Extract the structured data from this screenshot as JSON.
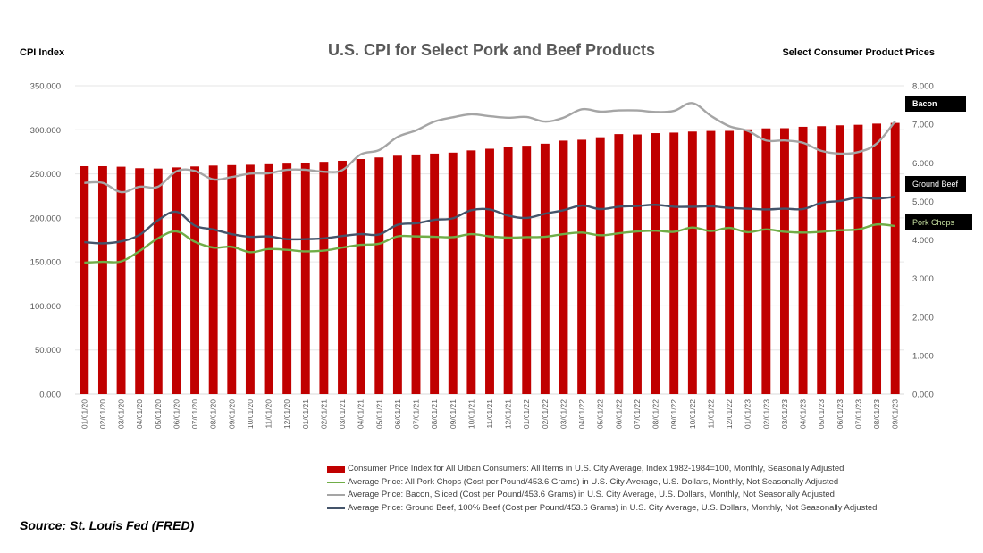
{
  "chart_data": {
    "type": "bar",
    "title": "U.S. CPI for Select Pork and Beef Products",
    "ylabel_left": "CPI Index",
    "ylabel_right": "Select Consumer Product Prices",
    "xlabel": "",
    "ylim_left": [
      0,
      350
    ],
    "ylim_right": [
      0,
      8
    ],
    "yticks_left": [
      "0.000",
      "50.000",
      "100.000",
      "150.000",
      "200.000",
      "250.000",
      "300.000",
      "350.000"
    ],
    "yticks_right": [
      "0.000",
      "1.000",
      "2.000",
      "3.000",
      "4.000",
      "5.000",
      "6.000",
      "7.000",
      "8.000"
    ],
    "grid": true,
    "legend_position": "bottom",
    "categories": [
      "01/01/20",
      "02/01/20",
      "03/01/20",
      "04/01/20",
      "05/01/20",
      "06/01/20",
      "07/01/20",
      "08/01/20",
      "09/01/20",
      "10/01/20",
      "11/01/20",
      "12/01/20",
      "01/01/21",
      "02/01/21",
      "03/01/21",
      "04/01/21",
      "05/01/21",
      "06/01/21",
      "07/01/21",
      "08/01/21",
      "09/01/21",
      "10/01/21",
      "11/01/21",
      "12/01/21",
      "01/01/22",
      "02/01/22",
      "03/01/22",
      "04/01/22",
      "05/01/22",
      "06/01/22",
      "07/01/22",
      "08/01/22",
      "09/01/22",
      "10/01/22",
      "11/01/22",
      "12/01/22",
      "01/01/23",
      "02/01/23",
      "03/01/23",
      "04/01/23",
      "05/01/23",
      "06/01/23",
      "07/01/23",
      "08/01/23",
      "09/01/23"
    ],
    "series": [
      {
        "name": "Consumer Price Index for All Urban Consumers: All Items in U.S. City Average, Index 1982-1984=100, Monthly, Seasonally Adjusted",
        "type": "bar",
        "axis": "left",
        "color": "#C00000",
        "values": [
          258.7,
          258.7,
          258.1,
          256.4,
          256.0,
          257.3,
          258.4,
          259.4,
          259.9,
          260.3,
          260.9,
          261.6,
          262.5,
          263.6,
          264.8,
          266.8,
          268.6,
          270.6,
          272.0,
          273.0,
          274.1,
          276.6,
          278.5,
          280.1,
          281.9,
          284.2,
          287.7,
          288.7,
          291.5,
          295.1,
          294.7,
          296.2,
          296.8,
          298.0,
          298.7,
          298.8,
          300.5,
          301.6,
          301.8,
          303.4,
          304.1,
          305.1,
          305.7,
          307.0,
          307.8
        ]
      },
      {
        "name": "Average Price: All Pork Chops (Cost per Pound/453.6 Grams) in U.S. City Average, U.S. Dollars, Monthly, Not Seasonally Adjusted",
        "type": "line",
        "axis": "right",
        "color": "#70AD47",
        "values": [
          3.41,
          3.43,
          3.44,
          3.71,
          4.04,
          4.22,
          3.95,
          3.8,
          3.82,
          3.68,
          3.76,
          3.74,
          3.7,
          3.72,
          3.8,
          3.87,
          3.9,
          4.09,
          4.09,
          4.08,
          4.07,
          4.15,
          4.09,
          4.06,
          4.07,
          4.08,
          4.15,
          4.19,
          4.12,
          4.17,
          4.22,
          4.24,
          4.21,
          4.32,
          4.23,
          4.31,
          4.2,
          4.27,
          4.21,
          4.19,
          4.21,
          4.25,
          4.27,
          4.4,
          4.36
        ]
      },
      {
        "name": "Average Price: Bacon, Sliced (Cost per Pound/453.6 Grams) in U.S. City Average, U.S. Dollars, Monthly, Not Seasonally Adjusted",
        "type": "line",
        "axis": "right",
        "color": "#A5A5A5",
        "values": [
          5.48,
          5.48,
          5.24,
          5.38,
          5.38,
          5.78,
          5.79,
          5.57,
          5.63,
          5.72,
          5.73,
          5.82,
          5.82,
          5.77,
          5.81,
          6.22,
          6.33,
          6.67,
          6.84,
          7.07,
          7.18,
          7.26,
          7.21,
          7.17,
          7.19,
          7.07,
          7.17,
          7.39,
          7.33,
          7.36,
          7.36,
          7.32,
          7.35,
          7.55,
          7.22,
          6.95,
          6.83,
          6.58,
          6.58,
          6.52,
          6.31,
          6.24,
          6.28,
          6.5,
          7.08
        ]
      },
      {
        "name": "Average Price: Ground Beef, 100% Beef (Cost per Pound/453.6 Grams) in U.S. City Average, U.S. Dollars, Monthly, Not Seasonally Adjusted",
        "type": "line",
        "axis": "right",
        "color": "#44546A",
        "values": [
          3.94,
          3.91,
          3.96,
          4.13,
          4.51,
          4.73,
          4.37,
          4.27,
          4.15,
          4.08,
          4.09,
          4.02,
          4.02,
          4.04,
          4.1,
          4.15,
          4.14,
          4.39,
          4.43,
          4.52,
          4.56,
          4.77,
          4.79,
          4.63,
          4.57,
          4.68,
          4.77,
          4.89,
          4.8,
          4.86,
          4.88,
          4.91,
          4.86,
          4.86,
          4.87,
          4.83,
          4.81,
          4.79,
          4.81,
          4.8,
          4.96,
          5.01,
          5.1,
          5.07,
          5.12
        ]
      }
    ],
    "annotations": [
      {
        "label": "Bacon",
        "series": "bacon"
      },
      {
        "label": "Ground Beef",
        "series": "ground_beef"
      },
      {
        "label": "Pork Chops",
        "series": "pork_chops"
      }
    ]
  },
  "labels": {
    "title": "U.S. CPI for Select Pork and Beef Products",
    "left_axis_title": "CPI Index",
    "right_axis_title": "Select Consumer Product Prices",
    "source": "Source: St. Louis Fed (FRED)",
    "tag_bacon": "Bacon",
    "tag_ground_beef": "Ground Beef",
    "tag_pork_chops": "Pork Chops"
  }
}
